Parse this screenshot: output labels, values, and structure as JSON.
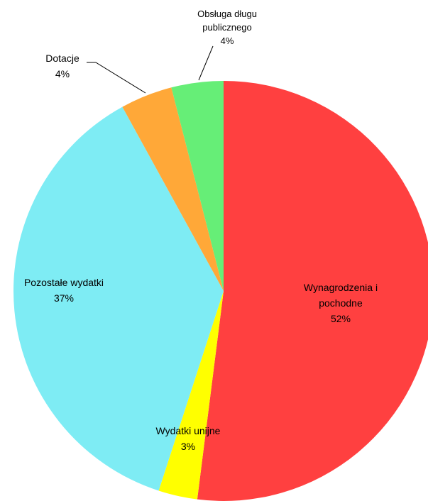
{
  "chart_data": {
    "type": "pie",
    "categories": [
      "Wynagrodzenia i pochodne",
      "Wydatki unijne",
      "Pozostałe wydatki",
      "Dotacje",
      "Obsługa długu publicznego"
    ],
    "values": [
      52,
      3,
      37,
      4,
      4
    ],
    "value_labels": [
      "52%",
      "3%",
      "37%",
      "4%",
      "4%"
    ],
    "colors": [
      "#ff4040",
      "#ffff00",
      "#7eecf4",
      "#ffa838",
      "#66ee77"
    ]
  }
}
